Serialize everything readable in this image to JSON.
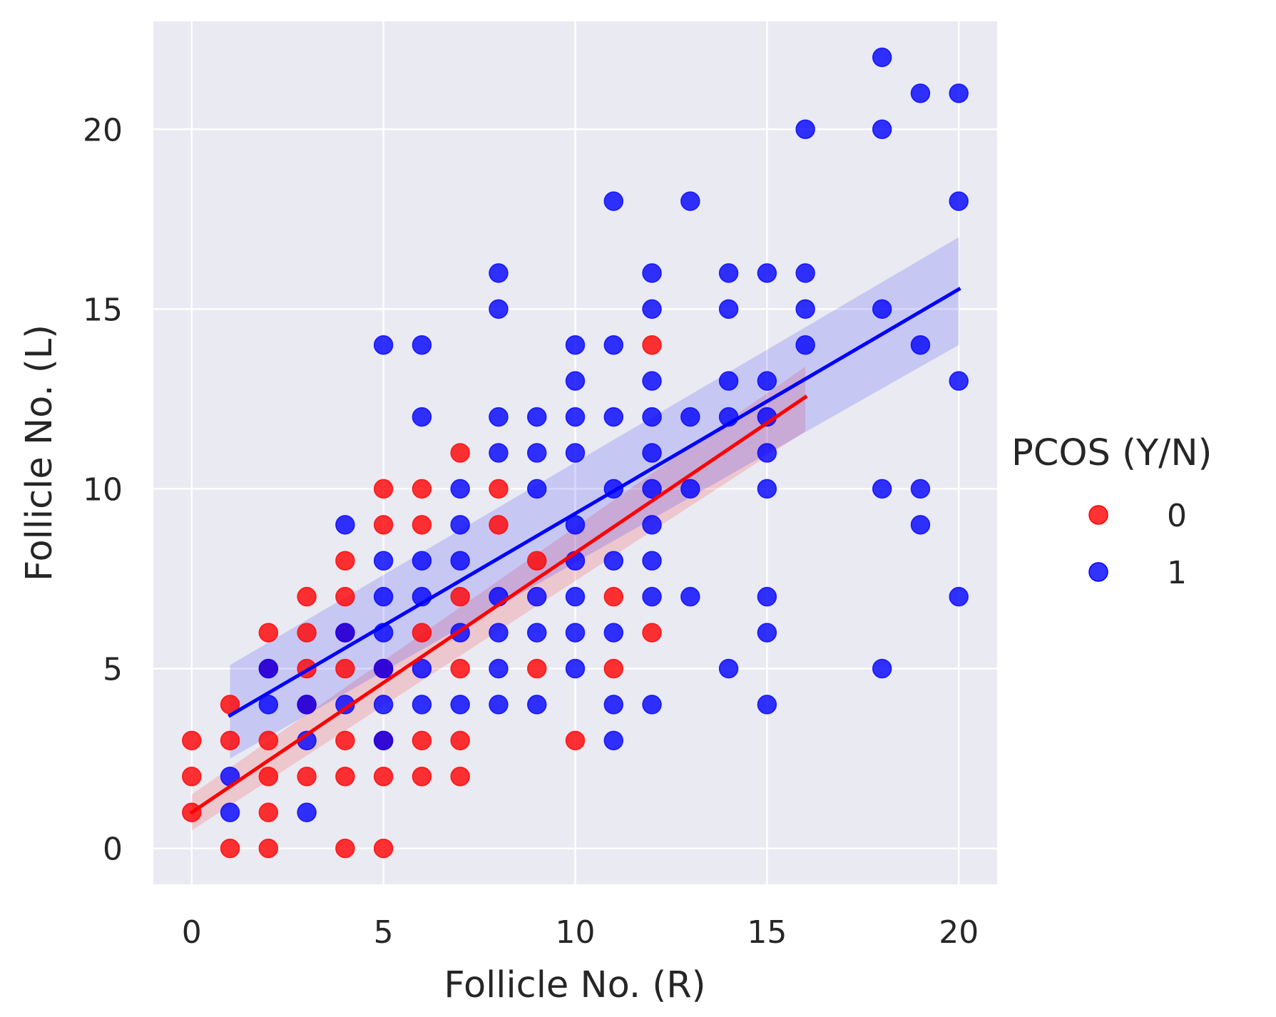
{
  "chart_data": {
    "type": "scatter",
    "xlabel": "Follicle No. (R)",
    "ylabel": "Follicle No. (L)",
    "xlim": [
      -1,
      21
    ],
    "ylim": [
      -1,
      23
    ],
    "xticks": [
      0,
      5,
      10,
      15,
      20
    ],
    "yticks": [
      0,
      5,
      10,
      15,
      20
    ],
    "grid": true,
    "background": "#eaeaf2",
    "legend": {
      "title": "PCOS (Y/N)",
      "placement": "right",
      "entries": [
        "0",
        "1"
      ]
    },
    "series": [
      {
        "name": "0",
        "color": "#ff0000",
        "points": [
          [
            0,
            1
          ],
          [
            0,
            2
          ],
          [
            0,
            3
          ],
          [
            1,
            0
          ],
          [
            1,
            3
          ],
          [
            1,
            4
          ],
          [
            2,
            0
          ],
          [
            2,
            1
          ],
          [
            2,
            2
          ],
          [
            2,
            3
          ],
          [
            2,
            5
          ],
          [
            2,
            6
          ],
          [
            3,
            2
          ],
          [
            3,
            4
          ],
          [
            3,
            5
          ],
          [
            3,
            6
          ],
          [
            3,
            7
          ],
          [
            4,
            0
          ],
          [
            4,
            2
          ],
          [
            4,
            3
          ],
          [
            4,
            5
          ],
          [
            4,
            6
          ],
          [
            4,
            7
          ],
          [
            4,
            8
          ],
          [
            5,
            0
          ],
          [
            5,
            2
          ],
          [
            5,
            3
          ],
          [
            5,
            5
          ],
          [
            5,
            9
          ],
          [
            5,
            10
          ],
          [
            6,
            2
          ],
          [
            6,
            3
          ],
          [
            6,
            6
          ],
          [
            6,
            9
          ],
          [
            6,
            10
          ],
          [
            7,
            2
          ],
          [
            7,
            3
          ],
          [
            7,
            5
          ],
          [
            7,
            7
          ],
          [
            7,
            11
          ],
          [
            8,
            9
          ],
          [
            8,
            10
          ],
          [
            9,
            5
          ],
          [
            9,
            8
          ],
          [
            10,
            3
          ],
          [
            11,
            5
          ],
          [
            11,
            7
          ],
          [
            12,
            6
          ],
          [
            12,
            14
          ]
        ],
        "fit": {
          "x": [
            0,
            16
          ],
          "y": [
            1.0,
            12.55
          ],
          "ci_upper": [
            1.5,
            13.4
          ],
          "ci_lower": [
            0.5,
            11.6
          ]
        }
      },
      {
        "name": "1",
        "color": "#0000ff",
        "points": [
          [
            1,
            1
          ],
          [
            1,
            2
          ],
          [
            2,
            4
          ],
          [
            2,
            5
          ],
          [
            3,
            1
          ],
          [
            3,
            3
          ],
          [
            3,
            4
          ],
          [
            4,
            4
          ],
          [
            4,
            6
          ],
          [
            4,
            9
          ],
          [
            5,
            3
          ],
          [
            5,
            4
          ],
          [
            5,
            5
          ],
          [
            5,
            6
          ],
          [
            5,
            7
          ],
          [
            5,
            8
          ],
          [
            5,
            14
          ],
          [
            6,
            4
          ],
          [
            6,
            5
          ],
          [
            6,
            7
          ],
          [
            6,
            8
          ],
          [
            6,
            12
          ],
          [
            6,
            14
          ],
          [
            7,
            4
          ],
          [
            7,
            6
          ],
          [
            7,
            8
          ],
          [
            7,
            9
          ],
          [
            7,
            10
          ],
          [
            8,
            4
          ],
          [
            8,
            5
          ],
          [
            8,
            6
          ],
          [
            8,
            7
          ],
          [
            8,
            11
          ],
          [
            8,
            12
          ],
          [
            8,
            15
          ],
          [
            8,
            16
          ],
          [
            9,
            4
          ],
          [
            9,
            6
          ],
          [
            9,
            7
          ],
          [
            9,
            10
          ],
          [
            9,
            11
          ],
          [
            9,
            12
          ],
          [
            10,
            5
          ],
          [
            10,
            6
          ],
          [
            10,
            7
          ],
          [
            10,
            8
          ],
          [
            10,
            9
          ],
          [
            10,
            11
          ],
          [
            10,
            12
          ],
          [
            10,
            13
          ],
          [
            10,
            14
          ],
          [
            11,
            3
          ],
          [
            11,
            4
          ],
          [
            11,
            6
          ],
          [
            11,
            8
          ],
          [
            11,
            10
          ],
          [
            11,
            12
          ],
          [
            11,
            14
          ],
          [
            11,
            18
          ],
          [
            12,
            4
          ],
          [
            12,
            7
          ],
          [
            12,
            8
          ],
          [
            12,
            9
          ],
          [
            12,
            10
          ],
          [
            12,
            11
          ],
          [
            12,
            12
          ],
          [
            12,
            13
          ],
          [
            12,
            15
          ],
          [
            12,
            16
          ],
          [
            13,
            7
          ],
          [
            13,
            10
          ],
          [
            13,
            12
          ],
          [
            13,
            18
          ],
          [
            14,
            5
          ],
          [
            14,
            12
          ],
          [
            14,
            13
          ],
          [
            14,
            15
          ],
          [
            14,
            16
          ],
          [
            15,
            4
          ],
          [
            15,
            6
          ],
          [
            15,
            7
          ],
          [
            15,
            10
          ],
          [
            15,
            11
          ],
          [
            15,
            12
          ],
          [
            15,
            13
          ],
          [
            15,
            16
          ],
          [
            16,
            14
          ],
          [
            16,
            15
          ],
          [
            16,
            16
          ],
          [
            16,
            20
          ],
          [
            18,
            5
          ],
          [
            18,
            10
          ],
          [
            18,
            15
          ],
          [
            18,
            20
          ],
          [
            18,
            22
          ],
          [
            19,
            9
          ],
          [
            19,
            10
          ],
          [
            19,
            14
          ],
          [
            19,
            21
          ],
          [
            20,
            7
          ],
          [
            20,
            13
          ],
          [
            20,
            18
          ],
          [
            20,
            21
          ]
        ],
        "fit": {
          "x": [
            1,
            20
          ],
          "y": [
            3.7,
            15.55
          ],
          "ci_upper": [
            5.1,
            17.0
          ],
          "ci_lower": [
            2.5,
            14.0
          ]
        }
      }
    ]
  }
}
